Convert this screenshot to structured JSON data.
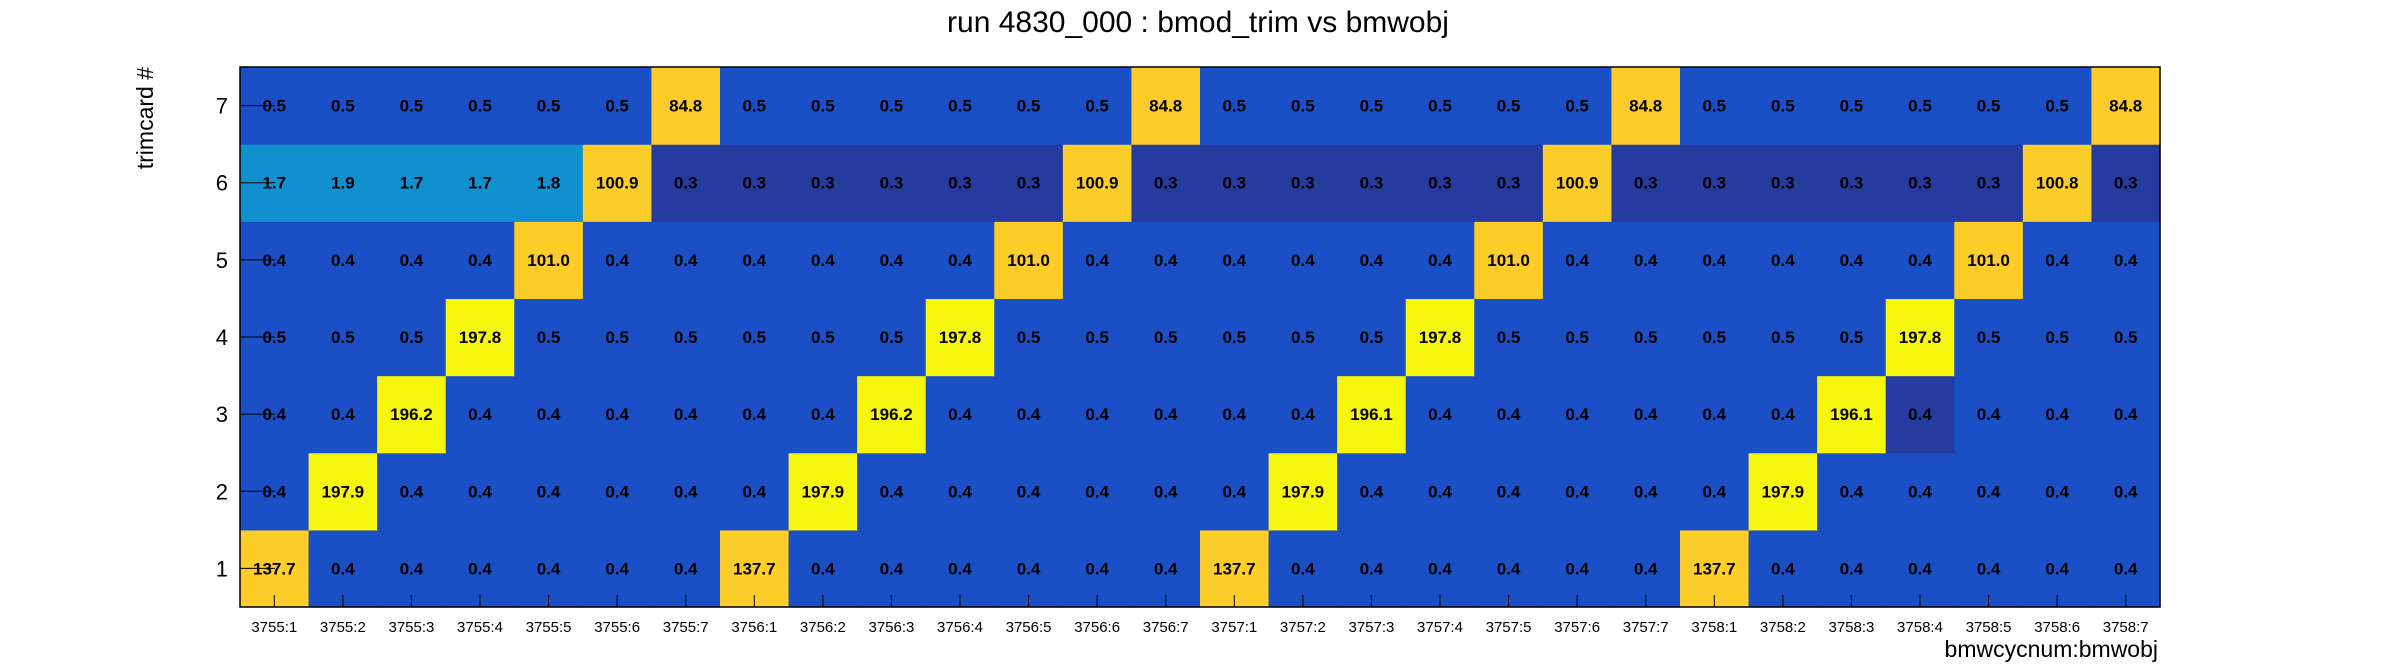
{
  "chart_data": {
    "type": "heatmap",
    "title": "run 4830_000 : bmod_trim vs bmwobj",
    "xlabel": "bmwcycnum:bmwobj",
    "ylabel": "trimcard #",
    "x_categories": [
      "3755:1",
      "3755:2",
      "3755:3",
      "3755:4",
      "3755:5",
      "3755:6",
      "3755:7",
      "3756:1",
      "3756:2",
      "3756:3",
      "3756:4",
      "3756:5",
      "3756:6",
      "3756:7",
      "3757:1",
      "3757:2",
      "3757:3",
      "3757:4",
      "3757:5",
      "3757:6",
      "3757:7",
      "3758:1",
      "3758:2",
      "3758:3",
      "3758:4",
      "3758:5",
      "3758:6",
      "3758:7"
    ],
    "y_categories": [
      "1",
      "2",
      "3",
      "4",
      "5",
      "6",
      "7"
    ],
    "labels": [
      [
        "137.7",
        "0.4",
        "0.4",
        "0.4",
        "0.4",
        "0.4",
        "0.4",
        "137.7",
        "0.4",
        "0.4",
        "0.4",
        "0.4",
        "0.4",
        "0.4",
        "137.7",
        "0.4",
        "0.4",
        "0.4",
        "0.4",
        "0.4",
        "0.4",
        "137.7",
        "0.4",
        "0.4",
        "0.4",
        "0.4",
        "0.4",
        "0.4"
      ],
      [
        "0.4",
        "197.9",
        "0.4",
        "0.4",
        "0.4",
        "0.4",
        "0.4",
        "0.4",
        "197.9",
        "0.4",
        "0.4",
        "0.4",
        "0.4",
        "0.4",
        "0.4",
        "197.9",
        "0.4",
        "0.4",
        "0.4",
        "0.4",
        "0.4",
        "0.4",
        "197.9",
        "0.4",
        "0.4",
        "0.4",
        "0.4",
        "0.4"
      ],
      [
        "0.4",
        "0.4",
        "196.2",
        "0.4",
        "0.4",
        "0.4",
        "0.4",
        "0.4",
        "0.4",
        "196.2",
        "0.4",
        "0.4",
        "0.4",
        "0.4",
        "0.4",
        "0.4",
        "196.1",
        "0.4",
        "0.4",
        "0.4",
        "0.4",
        "0.4",
        "0.4",
        "196.1",
        "0.4",
        "0.4",
        "0.4",
        "0.4"
      ],
      [
        "0.5",
        "0.5",
        "0.5",
        "197.8",
        "0.5",
        "0.5",
        "0.5",
        "0.5",
        "0.5",
        "0.5",
        "197.8",
        "0.5",
        "0.5",
        "0.5",
        "0.5",
        "0.5",
        "0.5",
        "197.8",
        "0.5",
        "0.5",
        "0.5",
        "0.5",
        "0.5",
        "0.5",
        "197.8",
        "0.5",
        "0.5",
        "0.5"
      ],
      [
        "0.4",
        "0.4",
        "0.4",
        "0.4",
        "101.0",
        "0.4",
        "0.4",
        "0.4",
        "0.4",
        "0.4",
        "0.4",
        "101.0",
        "0.4",
        "0.4",
        "0.4",
        "0.4",
        "0.4",
        "0.4",
        "101.0",
        "0.4",
        "0.4",
        "0.4",
        "0.4",
        "0.4",
        "0.4",
        "101.0",
        "0.4",
        "0.4"
      ],
      [
        "1.7",
        "1.9",
        "1.7",
        "1.7",
        "1.8",
        "100.9",
        "0.3",
        "0.3",
        "0.3",
        "0.3",
        "0.3",
        "0.3",
        "100.9",
        "0.3",
        "0.3",
        "0.3",
        "0.3",
        "0.3",
        "0.3",
        "100.9",
        "0.3",
        "0.3",
        "0.3",
        "0.3",
        "0.3",
        "0.3",
        "100.8",
        "0.3"
      ],
      [
        "0.5",
        "0.5",
        "0.5",
        "0.5",
        "0.5",
        "0.5",
        "84.8",
        "0.5",
        "0.5",
        "0.5",
        "0.5",
        "0.5",
        "0.5",
        "84.8",
        "0.5",
        "0.5",
        "0.5",
        "0.5",
        "0.5",
        "0.5",
        "84.8",
        "0.5",
        "0.5",
        "0.5",
        "0.5",
        "0.5",
        "0.5",
        "84.8"
      ]
    ],
    "colors": {
      "background_low": "#1a4fc6",
      "background_lower": "#253b9e",
      "mid_low": "#1190cf",
      "mid": "#fccc28",
      "high": "#f7f70e",
      "frame": "#000000"
    },
    "overrides": [
      {
        "row": 2,
        "col": 24,
        "color": "#253b9e"
      }
    ],
    "grid": false,
    "legend": "none"
  }
}
